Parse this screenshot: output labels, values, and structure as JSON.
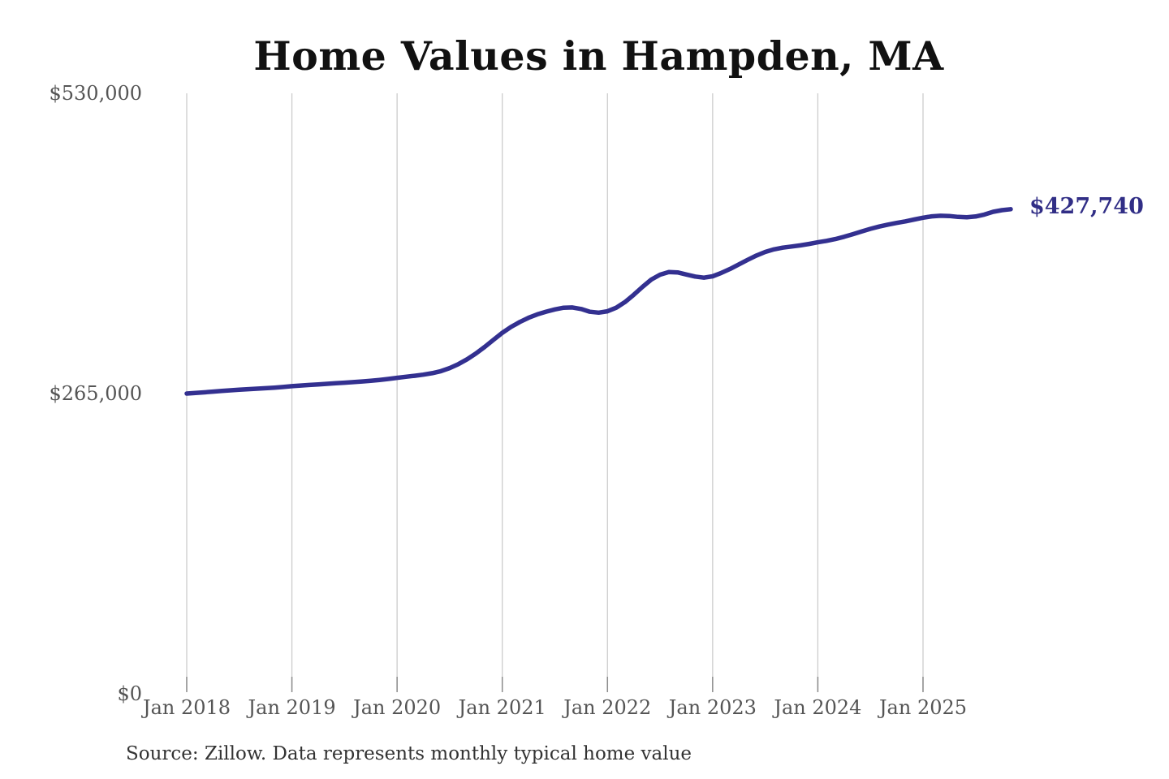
{
  "title": "Home Values in Hampden, MA",
  "source_note": "Source: Zillow. Data represents monthly typical home value",
  "end_label": "$427,740",
  "colors": {
    "background": "#ffffff",
    "line": "#333090",
    "end_label": "#312e86",
    "gridline": "#cccccc",
    "tick": "#8c8c8c",
    "axis_text": "#555555",
    "title_text": "#111111",
    "source_text": "#333333"
  },
  "chart_data": {
    "type": "line",
    "title": "Home Values in Hampden, MA",
    "xlabel": "",
    "ylabel": "",
    "ylim": [
      0,
      530000
    ],
    "grid": "vertical-only",
    "legend": "none",
    "x_tick_labels": [
      "Jan 2018",
      "Jan 2019",
      "Jan 2020",
      "Jan 2021",
      "Jan 2022",
      "Jan 2023",
      "Jan 2024",
      "Jan 2025"
    ],
    "y_ticks": [
      {
        "label": "$530,000",
        "value": 530000
      },
      {
        "label": "$265,000",
        "value": 265000
      },
      {
        "label": "$0",
        "value": 0
      }
    ],
    "end_value": 427740,
    "end_value_label": "$427,740",
    "series": [
      {
        "name": "Monthly typical home value",
        "start_month": "2018-01",
        "end_month": "2025-11",
        "values": [
          265000,
          265500,
          266100,
          266700,
          267300,
          267900,
          268400,
          268900,
          269300,
          269700,
          270200,
          270800,
          271500,
          272100,
          272600,
          273100,
          273600,
          274100,
          274600,
          275100,
          275700,
          276300,
          277000,
          277900,
          278900,
          279800,
          280700,
          281700,
          283000,
          284800,
          287500,
          291000,
          295300,
          300400,
          306200,
          312500,
          318600,
          323800,
          328200,
          331900,
          334900,
          337300,
          339300,
          340800,
          341000,
          339600,
          337200,
          336400,
          337600,
          340800,
          345800,
          352200,
          359200,
          365600,
          369900,
          372300,
          371900,
          370100,
          368300,
          367300,
          368500,
          371500,
          375000,
          379000,
          383000,
          386800,
          390000,
          392300,
          393800,
          394800,
          395800,
          397100,
          398500,
          399800,
          401400,
          403400,
          405700,
          408100,
          410400,
          412400,
          414100,
          415600,
          417000,
          418600,
          420200,
          421400,
          421900,
          421700,
          420900,
          420600,
          421300,
          423000,
          425400,
          426900,
          427740
        ]
      }
    ]
  }
}
